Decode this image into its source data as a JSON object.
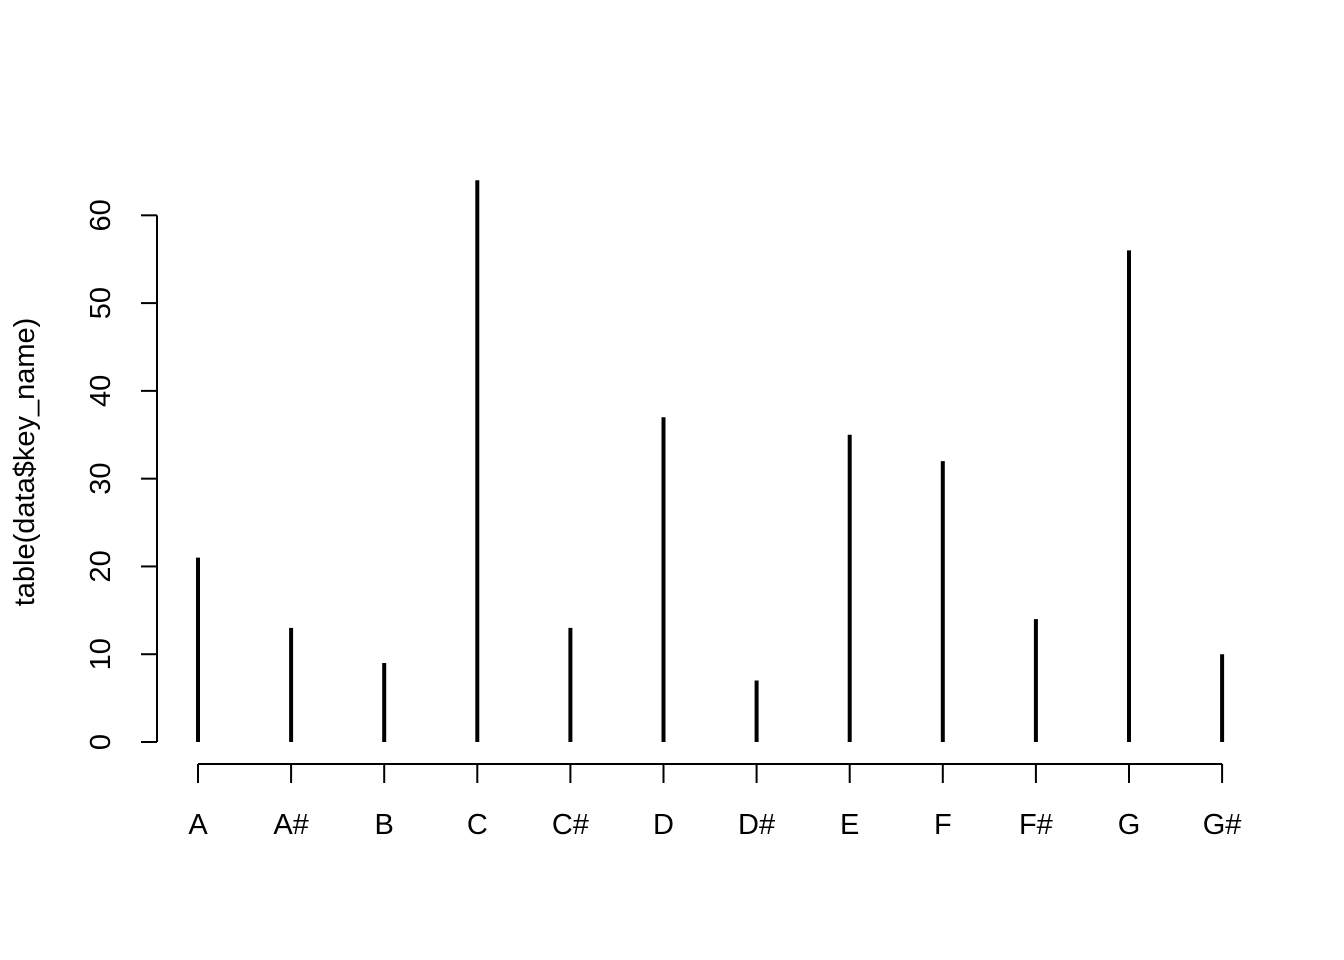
{
  "chart_data": {
    "type": "bar",
    "title": "",
    "xlabel": "",
    "ylabel": "table(data$key_name)",
    "categories": [
      "A",
      "A#",
      "B",
      "C",
      "C#",
      "D",
      "D#",
      "E",
      "F",
      "F#",
      "G",
      "G#"
    ],
    "values": [
      21,
      13,
      9,
      64,
      13,
      37,
      7,
      35,
      32,
      14,
      56,
      10
    ],
    "yticks": [
      0,
      10,
      20,
      30,
      40,
      50,
      60
    ],
    "ylim": [
      0,
      64
    ],
    "grid": false,
    "legend": "none",
    "colors": {
      "line": "#000000",
      "background": "#ffffff"
    }
  }
}
